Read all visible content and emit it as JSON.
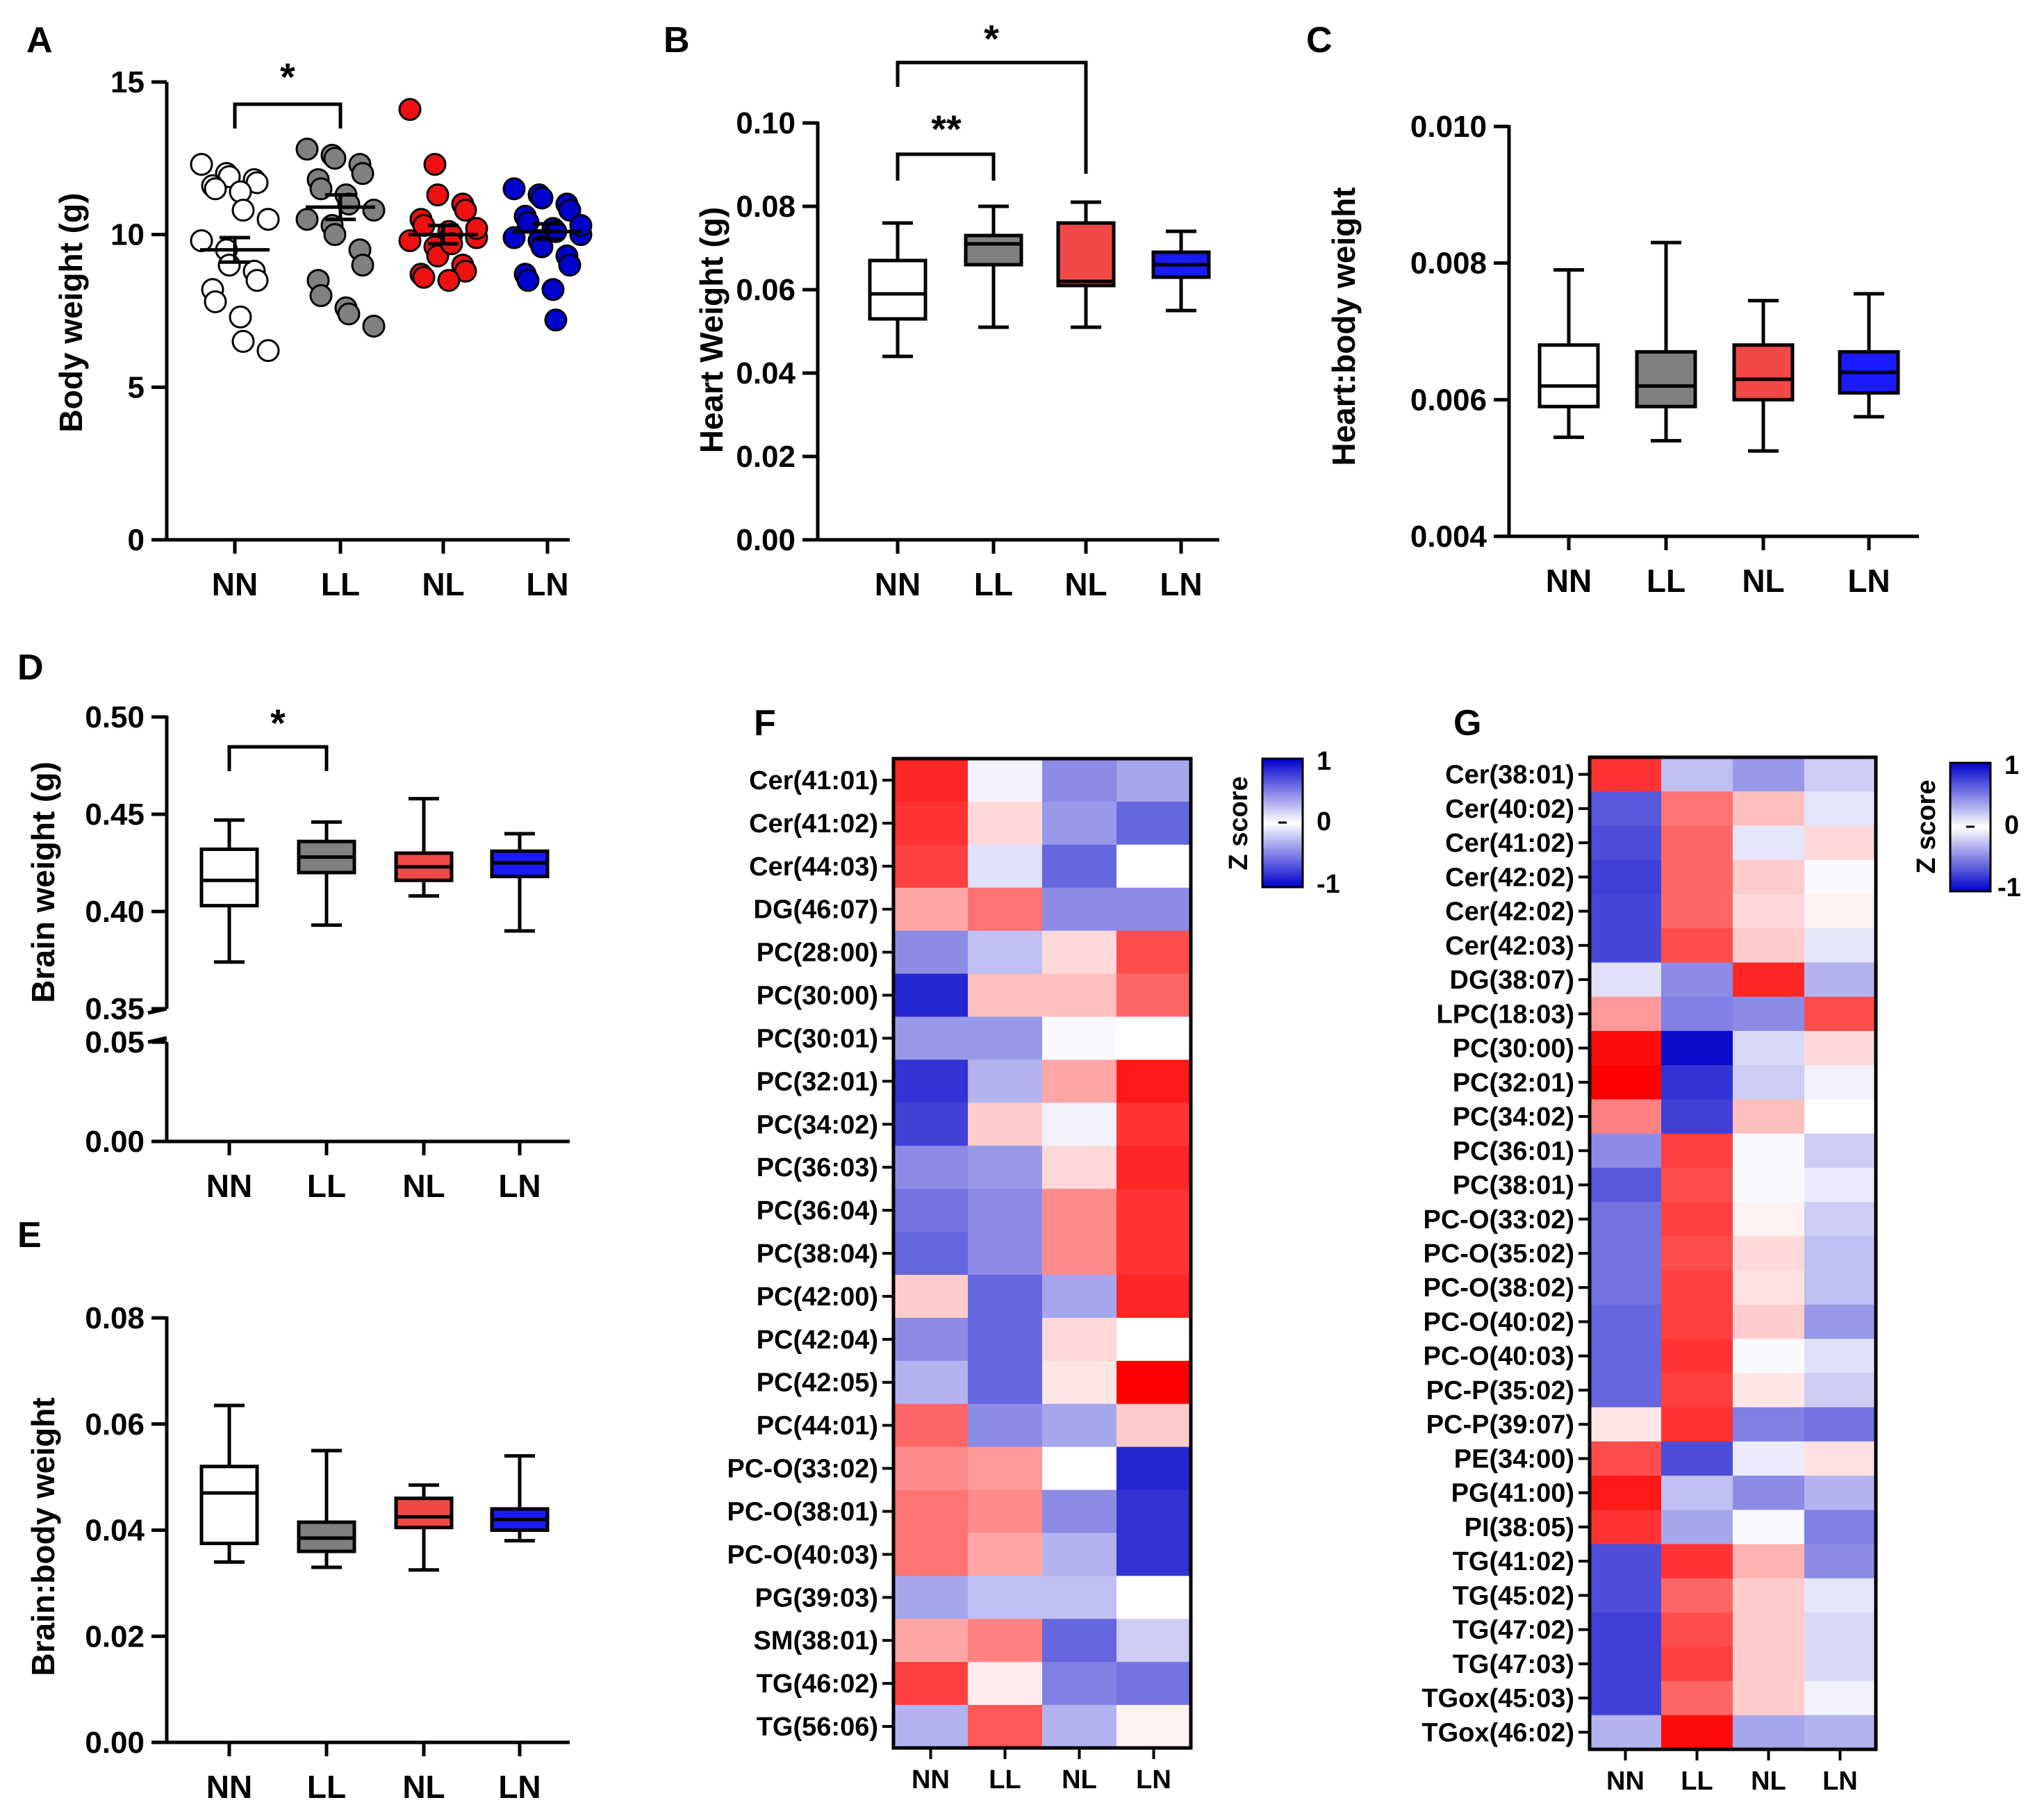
{
  "panels": {
    "A": {
      "label": "A",
      "ylabel": "Body weight (g)",
      "yticks": [
        "0",
        "5",
        "10",
        "15"
      ],
      "categories": [
        "NN",
        "LL",
        "NL",
        "LN"
      ],
      "sig": "*"
    },
    "B": {
      "label": "B",
      "ylabel": "Heart Weight (g)",
      "yticks": [
        "0.00",
        "0.02",
        "0.04",
        "0.06",
        "0.08",
        "0.10"
      ],
      "categories": [
        "NN",
        "LL",
        "NL",
        "LN"
      ],
      "sig1": "**",
      "sig2": "*"
    },
    "C": {
      "label": "C",
      "ylabel": "Heart:body weight",
      "yticks": [
        "0.004",
        "0.006",
        "0.008",
        "0.010"
      ],
      "categories": [
        "NN",
        "LL",
        "NL",
        "LN"
      ]
    },
    "D": {
      "label": "D",
      "ylabel": "Brain weight (g)",
      "yticks": [
        "0.00",
        "0.05",
        "0.35",
        "0.40",
        "0.45",
        "0.50"
      ],
      "categories": [
        "NN",
        "LL",
        "NL",
        "LN"
      ],
      "sig": "*"
    },
    "E": {
      "label": "E",
      "ylabel": "Brain:body weight",
      "yticks": [
        "0.00",
        "0.02",
        "0.04",
        "0.06",
        "0.08"
      ],
      "categories": [
        "NN",
        "LL",
        "NL",
        "LN"
      ]
    },
    "F": {
      "label": "F",
      "colorbar_title": "Z score",
      "colorbar_ticks": [
        "1",
        "0",
        "-1"
      ],
      "categories": [
        "NN",
        "LL",
        "NL",
        "LN"
      ]
    },
    "G": {
      "label": "G",
      "colorbar_title": "Z score",
      "colorbar_ticks": [
        "1",
        "0",
        "-1"
      ],
      "categories": [
        "NN",
        "LL",
        "NL",
        "LN"
      ]
    }
  },
  "colors": {
    "NN": "#ffffff",
    "LL": "#808080",
    "NL": "#f24848",
    "LN": "#1a1aff",
    "A_NL": "#ee1111",
    "A_LN": "#0000cc"
  },
  "chart_data": [
    {
      "type": "scatter",
      "panel": "A",
      "ylabel": "Body weight (g)",
      "ylim": [
        0,
        15
      ],
      "categories": [
        "NN",
        "LL",
        "NL",
        "LN"
      ],
      "points": [
        [
          12.3,
          12.0,
          11.9,
          11.8,
          11.7,
          11.6,
          11.5,
          11.4,
          10.8,
          10.5,
          9.8,
          9.5,
          9.0,
          8.8,
          8.5,
          8.2,
          7.8,
          7.3,
          6.5,
          6.2
        ],
        [
          12.8,
          12.6,
          12.5,
          12.3,
          12.0,
          11.8,
          11.5,
          11.3,
          11.0,
          10.8,
          10.5,
          10.3,
          10.0,
          9.5,
          9.0,
          8.5,
          8.0,
          7.6,
          7.4,
          7.0
        ],
        [
          14.1,
          12.3,
          11.3,
          11.0,
          10.8,
          10.5,
          10.3,
          10.1,
          10.0,
          9.9,
          9.8,
          9.6,
          9.3,
          9.0,
          8.8,
          8.7,
          8.6,
          8.5,
          9.7,
          10.2
        ],
        [
          11.5,
          11.3,
          11.2,
          11.0,
          10.8,
          10.6,
          10.4,
          10.2,
          10.1,
          10.0,
          9.9,
          9.8,
          9.6,
          9.3,
          9.0,
          8.7,
          8.5,
          8.2,
          7.2,
          10.3
        ]
      ],
      "means": [
        9.5,
        10.9,
        10.0,
        10.1
      ],
      "sem": [
        0.4,
        0.4,
        0.3,
        0.25
      ]
    },
    {
      "type": "box",
      "panel": "B",
      "ylabel": "Heart Weight (g)",
      "ylim": [
        0,
        0.1
      ],
      "categories": [
        "NN",
        "LL",
        "NL",
        "LN"
      ],
      "boxes": [
        {
          "min": 0.044,
          "q1": 0.053,
          "median": 0.059,
          "q3": 0.067,
          "max": 0.076
        },
        {
          "min": 0.051,
          "q1": 0.066,
          "median": 0.071,
          "q3": 0.073,
          "max": 0.08
        },
        {
          "min": 0.051,
          "q1": 0.061,
          "median": 0.062,
          "q3": 0.076,
          "max": 0.081
        },
        {
          "min": 0.055,
          "q1": 0.063,
          "median": 0.066,
          "q3": 0.069,
          "max": 0.074
        }
      ]
    },
    {
      "type": "box",
      "panel": "C",
      "ylabel": "Heart:body weight",
      "ylim": [
        0.004,
        0.01
      ],
      "categories": [
        "NN",
        "LL",
        "NL",
        "LN"
      ],
      "boxes": [
        {
          "min": 0.00545,
          "q1": 0.0059,
          "median": 0.0062,
          "q3": 0.0068,
          "max": 0.0079
        },
        {
          "min": 0.0054,
          "q1": 0.0059,
          "median": 0.0062,
          "q3": 0.0067,
          "max": 0.0083
        },
        {
          "min": 0.00525,
          "q1": 0.006,
          "median": 0.0063,
          "q3": 0.0068,
          "max": 0.00745
        },
        {
          "min": 0.00575,
          "q1": 0.0061,
          "median": 0.0064,
          "q3": 0.0067,
          "max": 0.00755
        }
      ]
    },
    {
      "type": "box",
      "panel": "D",
      "ylabel": "Brain weight (g)",
      "ylim": [
        0.35,
        0.5
      ],
      "axis_break": [
        0.05,
        0.35
      ],
      "categories": [
        "NN",
        "LL",
        "NL",
        "LN"
      ],
      "boxes": [
        {
          "min": 0.374,
          "q1": 0.403,
          "median": 0.416,
          "q3": 0.432,
          "max": 0.447
        },
        {
          "min": 0.393,
          "q1": 0.42,
          "median": 0.428,
          "q3": 0.436,
          "max": 0.446
        },
        {
          "min": 0.408,
          "q1": 0.416,
          "median": 0.423,
          "q3": 0.43,
          "max": 0.458
        },
        {
          "min": 0.39,
          "q1": 0.418,
          "median": 0.425,
          "q3": 0.431,
          "max": 0.44
        }
      ]
    },
    {
      "type": "box",
      "panel": "E",
      "ylabel": "Brain:body weight",
      "ylim": [
        0,
        0.08
      ],
      "categories": [
        "NN",
        "LL",
        "NL",
        "LN"
      ],
      "boxes": [
        {
          "min": 0.034,
          "q1": 0.0375,
          "median": 0.047,
          "q3": 0.052,
          "max": 0.0635
        },
        {
          "min": 0.033,
          "q1": 0.036,
          "median": 0.0385,
          "q3": 0.0415,
          "max": 0.055
        },
        {
          "min": 0.0325,
          "q1": 0.0405,
          "median": 0.0425,
          "q3": 0.046,
          "max": 0.0485
        },
        {
          "min": 0.038,
          "q1": 0.04,
          "median": 0.042,
          "q3": 0.044,
          "max": 0.054
        }
      ]
    },
    {
      "type": "heatmap",
      "panel": "F",
      "columns": [
        "NN",
        "LL",
        "NL",
        "LN"
      ],
      "zlim": [
        -1,
        1
      ],
      "rows": [
        "Cer(41:01)",
        "Cer(41:02)",
        "Cer(44:03)",
        "DG(46:07)",
        "PC(28:00)",
        "PC(30:00)",
        "PC(30:01)",
        "PC(32:01)",
        "PC(34:02)",
        "PC(36:03)",
        "PC(36:04)",
        "PC(38:04)",
        "PC(42:00)",
        "PC(42:04)",
        "PC(42:05)",
        "PC(44:01)",
        "PC-O(33:02)",
        "PC-O(38:01)",
        "PC-O(40:03)",
        "PG(39:03)",
        "SM(38:01)",
        "TG(46:02)",
        "TG(56:06)"
      ],
      "values": [
        [
          -0.85,
          0.05,
          0.45,
          0.35
        ],
        [
          -0.8,
          -0.15,
          0.4,
          0.6
        ],
        [
          -0.75,
          0.12,
          0.6,
          0.0
        ],
        [
          -0.35,
          -0.55,
          0.45,
          0.45
        ],
        [
          0.45,
          0.25,
          -0.15,
          -0.7
        ],
        [
          0.85,
          -0.25,
          -0.25,
          -0.6
        ],
        [
          0.4,
          0.4,
          0.02,
          0.0
        ],
        [
          0.8,
          0.3,
          -0.35,
          -0.9
        ],
        [
          0.75,
          -0.2,
          0.05,
          -0.8
        ],
        [
          0.45,
          0.4,
          -0.15,
          -0.85
        ],
        [
          0.55,
          0.45,
          -0.45,
          -0.8
        ],
        [
          0.6,
          0.45,
          -0.45,
          -0.8
        ],
        [
          -0.2,
          0.6,
          0.35,
          -0.85
        ],
        [
          0.45,
          0.6,
          -0.15,
          0.0
        ],
        [
          0.3,
          0.6,
          -0.1,
          -1.0
        ],
        [
          -0.6,
          0.45,
          0.35,
          -0.2
        ],
        [
          -0.45,
          -0.4,
          0.0,
          0.85
        ],
        [
          -0.55,
          -0.45,
          0.45,
          0.8
        ],
        [
          -0.55,
          -0.35,
          0.3,
          0.8
        ],
        [
          0.35,
          0.25,
          0.25,
          0.0
        ],
        [
          -0.35,
          -0.5,
          0.6,
          0.2
        ],
        [
          -0.75,
          -0.08,
          0.5,
          0.55
        ],
        [
          0.3,
          -0.65,
          0.3,
          -0.05
        ]
      ]
    },
    {
      "type": "heatmap",
      "panel": "G",
      "columns": [
        "NN",
        "LL",
        "NL",
        "LN"
      ],
      "zlim": [
        -1,
        1
      ],
      "rows": [
        "Cer(38:01)",
        "Cer(40:02)",
        "Cer(41:02)",
        "Cer(42:02)",
        "Cer(42:02)",
        "Cer(42:03)",
        "DG(38:07)",
        "LPC(18:03)",
        "PC(30:00)",
        "PC(32:01)",
        "PC(34:02)",
        "PC(36:01)",
        "PC(38:01)",
        "PC-O(33:02)",
        "PC-O(35:02)",
        "PC-O(38:02)",
        "PC-O(40:02)",
        "PC-O(40:03)",
        "PC-P(35:02)",
        "PC-P(39:07)",
        "PE(34:00)",
        "PG(41:00)",
        "PI(38:05)",
        "TG(41:02)",
        "TG(45:02)",
        "TG(47:02)",
        "TG(47:03)",
        "TGox(45:03)",
        "TGox(46:02)"
      ],
      "values": [
        [
          -0.8,
          0.25,
          0.4,
          0.2
        ],
        [
          0.65,
          -0.55,
          -0.25,
          0.1
        ],
        [
          0.7,
          -0.6,
          0.1,
          -0.15
        ],
        [
          0.75,
          -0.6,
          -0.2,
          0.02
        ],
        [
          0.72,
          -0.6,
          -0.15,
          -0.05
        ],
        [
          0.72,
          -0.7,
          -0.2,
          0.1
        ],
        [
          0.12,
          0.45,
          -0.85,
          0.3
        ],
        [
          -0.4,
          0.5,
          0.45,
          -0.7
        ],
        [
          -0.95,
          0.95,
          0.15,
          -0.15
        ],
        [
          -1.0,
          0.8,
          0.2,
          0.05
        ],
        [
          -0.5,
          0.75,
          -0.25,
          0.0
        ],
        [
          0.45,
          -0.75,
          0.02,
          0.2
        ],
        [
          0.65,
          -0.7,
          0.02,
          0.08
        ],
        [
          0.55,
          -0.75,
          -0.05,
          0.2
        ],
        [
          0.55,
          -0.7,
          -0.15,
          0.25
        ],
        [
          0.55,
          -0.75,
          -0.12,
          0.25
        ],
        [
          0.6,
          -0.75,
          -0.2,
          0.4
        ],
        [
          0.6,
          -0.8,
          0.02,
          0.12
        ],
        [
          0.6,
          -0.75,
          -0.1,
          0.2
        ],
        [
          -0.1,
          -0.8,
          0.5,
          0.55
        ],
        [
          -0.7,
          0.7,
          0.08,
          -0.12
        ],
        [
          -0.9,
          0.25,
          0.45,
          0.3
        ],
        [
          -0.8,
          0.35,
          0.02,
          0.5
        ],
        [
          0.7,
          -0.8,
          -0.3,
          0.45
        ],
        [
          0.7,
          -0.6,
          -0.2,
          0.1
        ],
        [
          0.75,
          -0.7,
          -0.2,
          0.15
        ],
        [
          0.75,
          -0.75,
          -0.2,
          0.15
        ],
        [
          0.75,
          -0.6,
          -0.2,
          0.05
        ],
        [
          0.3,
          -0.95,
          0.35,
          0.3
        ]
      ]
    }
  ]
}
